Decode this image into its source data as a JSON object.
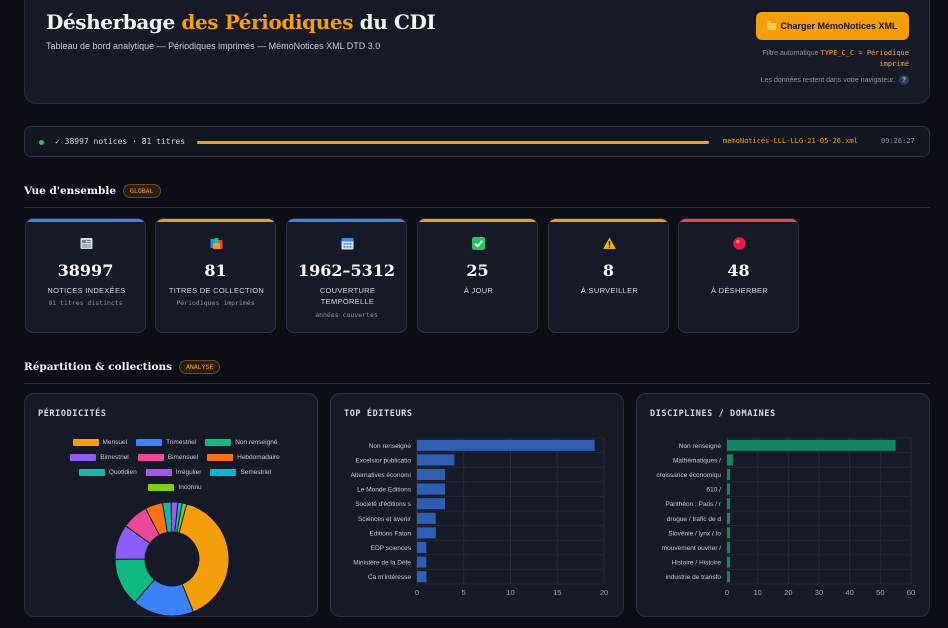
{
  "header": {
    "title_part1": "Désherbage ",
    "title_accent": "des Périodiques",
    "title_part2": " du CDI",
    "subtitle": "Tableau de bord analytique — Périodiques imprimés — MémoNotices XML DTD 3.0",
    "load_button": "Charger MémoNotices XML",
    "load_icon": "folder-icon",
    "filter_label": "Filtre automatique",
    "filter_code": "TYPE_C_C = Périodique imprimé",
    "privacy": "Les données restent dans votre navigateur.",
    "help": "?"
  },
  "status": {
    "text": "✓ 38997 notices · 81 titres",
    "progress": 1.0,
    "filename": "memoNotices-LLL-LLG-21-05-26.xml",
    "time": "09:26:27"
  },
  "overview": {
    "title": "Vue d'ensemble",
    "badge": "GLOBAL",
    "cards": [
      {
        "icon": "newspaper-icon",
        "value": "38997",
        "label": "NOTICES INDEXÉES",
        "sub": "81 titres distincts",
        "color": "#3b82f6"
      },
      {
        "icon": "books-icon",
        "value": "81",
        "label": "TITRES DE COLLECTION",
        "sub": "Périodiques imprimés",
        "color": "#f59e0b"
      },
      {
        "icon": "calendar-icon",
        "value": "1962–5312",
        "label": "COUVERTURE TEMPORELLE",
        "sub": "années couvertes",
        "color": "#3b82f6"
      },
      {
        "icon": "check-icon",
        "value": "25",
        "label": "À JOUR",
        "sub": "",
        "color": "#f59e0b"
      },
      {
        "icon": "warning-icon",
        "value": "8",
        "label": "À SURVEILLER",
        "sub": "",
        "color": "#f59e0b"
      },
      {
        "icon": "red-circle-icon",
        "value": "48",
        "label": "À DÉSHERBER",
        "sub": "",
        "color": "#ef4444"
      }
    ]
  },
  "distribution": {
    "title": "Répartition & collections",
    "badge": "ANALYSE"
  },
  "chart_data": [
    {
      "type": "pie",
      "title": "PÉRIODICITÉS",
      "legend_position": "top",
      "categories": [
        "Mensuel",
        "Trimestriel",
        "Non renseigné",
        "Bimestriel",
        "Bimensuel",
        "Hebdomadaire",
        "Quotidien",
        "Irrégulier",
        "Semestriel",
        "Inconnu"
      ],
      "values": [
        32,
        14,
        11,
        8,
        6,
        4,
        2,
        1.5,
        1,
        1
      ],
      "colors": [
        "#f59e0b",
        "#3b82f6",
        "#10b981",
        "#8b5cf6",
        "#ec4899",
        "#f97316",
        "#14b8a6",
        "#a855f7",
        "#06b6d4",
        "#84cc16"
      ]
    },
    {
      "type": "bar",
      "orientation": "horizontal",
      "title": "TOP ÉDITEURS",
      "categories": [
        "Non renseigné",
        "Excelsior publicatio",
        "Alternatives économi",
        "Le Monde Editions",
        "Société d'éditions s",
        "Sciences et avenir",
        "Editions Faton",
        "EDP sciences",
        "Ministère de la Défe",
        "Ca m'intéresse"
      ],
      "values": [
        19,
        4,
        3,
        3,
        3,
        2,
        2,
        1,
        1,
        1
      ],
      "xlim": [
        0,
        20
      ],
      "xticks": [
        0,
        5,
        10,
        15,
        20
      ],
      "color": "#2f5fb3"
    },
    {
      "type": "bar",
      "orientation": "horizontal",
      "title": "DISCIPLINES / DOMAINES",
      "categories": [
        "Non renseigné",
        "Mathématiques /",
        "croissance économiqu",
        "610 /",
        "Panthéon : Paris / r",
        "drogue / trafic de d",
        "Slovénie / lynx / fo",
        "mouvement ouvrier /",
        "Histoire / Histoire",
        "industrie de transfo"
      ],
      "values": [
        55,
        2,
        1,
        1,
        1,
        1,
        1,
        1,
        1,
        1
      ],
      "xlim": [
        0,
        60
      ],
      "xticks": [
        0,
        10,
        20,
        30,
        40,
        50,
        60
      ],
      "color": "#17855f"
    }
  ]
}
